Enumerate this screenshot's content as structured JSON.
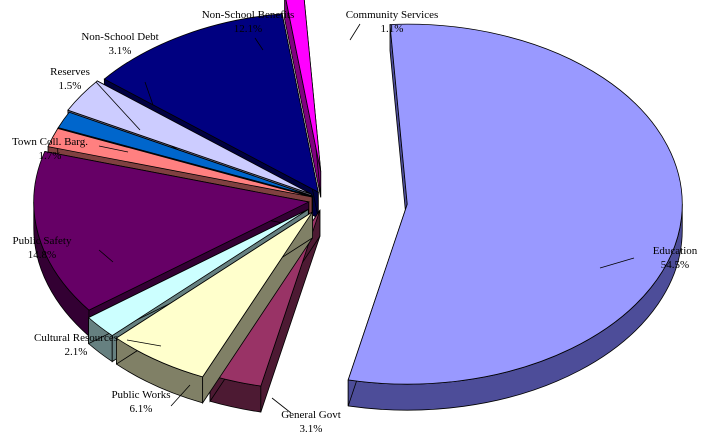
{
  "chart_data": {
    "type": "pie",
    "title": "",
    "three_d": true,
    "exploded": true,
    "slices": [
      {
        "label": "Education",
        "value": 54.5,
        "value_text": "54.5%",
        "color": "#9999ff",
        "side_color": "#4d4d99"
      },
      {
        "label": "General Govt",
        "value": 3.1,
        "value_text": "3.1%",
        "color": "#993366",
        "side_color": "#4d1a33"
      },
      {
        "label": "Public Works",
        "value": 6.1,
        "value_text": "6.1%",
        "color": "#ffffcc",
        "side_color": "#808066"
      },
      {
        "label": "Cultural Resources",
        "value": 2.1,
        "value_text": "2.1%",
        "color": "#ccffff",
        "side_color": "#668080"
      },
      {
        "label": "Public Safety",
        "value": 14.8,
        "value_text": "14.8%",
        "color": "#660066",
        "side_color": "#330033"
      },
      {
        "label": "Town Coll. Barg.",
        "value": 1.7,
        "value_text": "1.7%",
        "color": "#ff8080",
        "side_color": "#804040"
      },
      {
        "label": "Reserves",
        "value": 1.5,
        "value_text": "1.5%",
        "color": "#0066cc",
        "side_color": "#003366"
      },
      {
        "label": "Non-School Debt",
        "value": 3.1,
        "value_text": "3.1%",
        "color": "#ccccff",
        "side_color": "#666680"
      },
      {
        "label": "Non-School Benefits",
        "value": 12.1,
        "value_text": "12.1%",
        "color": "#000080",
        "side_color": "#000040"
      },
      {
        "label": "Community Services",
        "value": 1.1,
        "value_text": "1.1%",
        "color": "#ff00ff",
        "side_color": "#800080"
      }
    ]
  }
}
